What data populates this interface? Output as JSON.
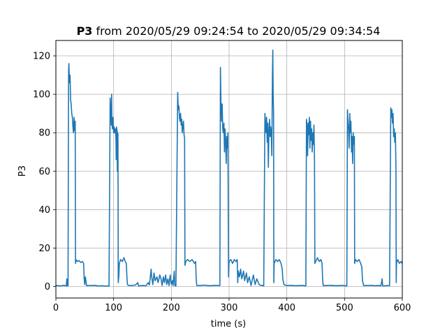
{
  "chart_data": {
    "type": "line",
    "title_bold": "P3",
    "title_rest": " from 2020/05/29 09:24:54 to 2020/05/29 09:34:54",
    "xlabel": "time (s)",
    "ylabel": "P3",
    "xlim": [
      0,
      600
    ],
    "ylim": [
      -6,
      128
    ],
    "xticks": [
      0,
      100,
      200,
      300,
      400,
      500,
      600
    ],
    "yticks": [
      0,
      20,
      40,
      60,
      80,
      100,
      120
    ],
    "grid": true,
    "line_color": "#1f77b4",
    "series": [
      {
        "points": [
          [
            0,
            0.5
          ],
          [
            8,
            0.3
          ],
          [
            14,
            0.6
          ],
          [
            18,
            0.2
          ],
          [
            19,
            4
          ],
          [
            20,
            0.5
          ],
          [
            21,
            0.3
          ],
          [
            22,
            112
          ],
          [
            22.5,
            116
          ],
          [
            23.5,
            106
          ],
          [
            24.5,
            110
          ],
          [
            25.5,
            97
          ],
          [
            26.5,
            95
          ],
          [
            27.5,
            90
          ],
          [
            28.5,
            88
          ],
          [
            29.5,
            83
          ],
          [
            30.5,
            80
          ],
          [
            31.5,
            88
          ],
          [
            32.5,
            81
          ],
          [
            33.5,
            86
          ],
          [
            34,
            12
          ],
          [
            35,
            14
          ],
          [
            37,
            13
          ],
          [
            40,
            13.5
          ],
          [
            43,
            12.5
          ],
          [
            46,
            13
          ],
          [
            48,
            12
          ],
          [
            49,
            4
          ],
          [
            50,
            1
          ],
          [
            51,
            5
          ],
          [
            52,
            3
          ],
          [
            53,
            0.5
          ],
          [
            58,
            0.5
          ],
          [
            63,
            0.5
          ],
          [
            68,
            0.6
          ],
          [
            73,
            0.3
          ],
          [
            80,
            0.4
          ],
          [
            86,
            0.2
          ],
          [
            92,
            0.3
          ],
          [
            94,
            98
          ],
          [
            95,
            90
          ],
          [
            96,
            84
          ],
          [
            96.5,
            100
          ],
          [
            97,
            85
          ],
          [
            98,
            82
          ],
          [
            99,
            88
          ],
          [
            100,
            80
          ],
          [
            101,
            83
          ],
          [
            102,
            80
          ],
          [
            103,
            82
          ],
          [
            104,
            77
          ],
          [
            104.5,
            66
          ],
          [
            105,
            83
          ],
          [
            106,
            81
          ],
          [
            106.5,
            60
          ],
          [
            107,
            80
          ],
          [
            107.5,
            79
          ],
          [
            108,
            2
          ],
          [
            109,
            5
          ],
          [
            110,
            12
          ],
          [
            112,
            14
          ],
          [
            115,
            13
          ],
          [
            118,
            15
          ],
          [
            120,
            13
          ],
          [
            122,
            12
          ],
          [
            123,
            5
          ],
          [
            124,
            1
          ],
          [
            126,
            0.5
          ],
          [
            132,
            0.5
          ],
          [
            138,
            0.8
          ],
          [
            142,
            2
          ],
          [
            143,
            0.3
          ],
          [
            150,
            0.5
          ],
          [
            156,
            0.4
          ],
          [
            160,
            2
          ],
          [
            162,
            0.8
          ],
          [
            165,
            9
          ],
          [
            166,
            5
          ],
          [
            168,
            1
          ],
          [
            170,
            7
          ],
          [
            172,
            3
          ],
          [
            175,
            5
          ],
          [
            177,
            2
          ],
          [
            180,
            6
          ],
          [
            182,
            4
          ],
          [
            184,
            0.5
          ],
          [
            186,
            5
          ],
          [
            188,
            2
          ],
          [
            190,
            6
          ],
          [
            192,
            1
          ],
          [
            194,
            4
          ],
          [
            196,
            0.5
          ],
          [
            198,
            6
          ],
          [
            200,
            1
          ],
          [
            202,
            3
          ],
          [
            203,
            0.5
          ],
          [
            205,
            8
          ],
          [
            206,
            0.5
          ],
          [
            208,
            0.3
          ],
          [
            211,
            101
          ],
          [
            212,
            92
          ],
          [
            213,
            94
          ],
          [
            214,
            88
          ],
          [
            215,
            86
          ],
          [
            216,
            90
          ],
          [
            217,
            84
          ],
          [
            218,
            87
          ],
          [
            219,
            80
          ],
          [
            220,
            84
          ],
          [
            221,
            86
          ],
          [
            222,
            79
          ],
          [
            223,
            77
          ],
          [
            223.5,
            11
          ],
          [
            225,
            13
          ],
          [
            228,
            14
          ],
          [
            232,
            13
          ],
          [
            236,
            14
          ],
          [
            240,
            12
          ],
          [
            242,
            13
          ],
          [
            243,
            4
          ],
          [
            244,
            0.5
          ],
          [
            250,
            0.5
          ],
          [
            256,
            0.7
          ],
          [
            262,
            0.5
          ],
          [
            268,
            0.4
          ],
          [
            275,
            0.6
          ],
          [
            280,
            0.5
          ],
          [
            284,
            0.5
          ],
          [
            285,
            114
          ],
          [
            286,
            95
          ],
          [
            287,
            86
          ],
          [
            288,
            95
          ],
          [
            289,
            82
          ],
          [
            290,
            80
          ],
          [
            291,
            85
          ],
          [
            292,
            70
          ],
          [
            293,
            82
          ],
          [
            294,
            76
          ],
          [
            295,
            64
          ],
          [
            296,
            78
          ],
          [
            297,
            72
          ],
          [
            298,
            80
          ],
          [
            299,
            5
          ],
          [
            300,
            13
          ],
          [
            303,
            14
          ],
          [
            306,
            12
          ],
          [
            309,
            14
          ],
          [
            312,
            13
          ],
          [
            314,
            14
          ],
          [
            315,
            2
          ],
          [
            316,
            8
          ],
          [
            318,
            5
          ],
          [
            320,
            9
          ],
          [
            322,
            4
          ],
          [
            325,
            8
          ],
          [
            327,
            3
          ],
          [
            330,
            7
          ],
          [
            332,
            2
          ],
          [
            335,
            5
          ],
          [
            338,
            0.5
          ],
          [
            342,
            6
          ],
          [
            345,
            1
          ],
          [
            348,
            4
          ],
          [
            352,
            1
          ],
          [
            355,
            0.5
          ],
          [
            358,
            0.6
          ],
          [
            360,
            0.3
          ],
          [
            362,
            90
          ],
          [
            363,
            85
          ],
          [
            364,
            80
          ],
          [
            365,
            88
          ],
          [
            366,
            75
          ],
          [
            367,
            85
          ],
          [
            368,
            62
          ],
          [
            369,
            80
          ],
          [
            370,
            87
          ],
          [
            371,
            78
          ],
          [
            372,
            83
          ],
          [
            373,
            80
          ],
          [
            374,
            68
          ],
          [
            375,
            108
          ],
          [
            375.7,
            123
          ],
          [
            376.3,
            100
          ],
          [
            377,
            90
          ],
          [
            377.5,
            2
          ],
          [
            378,
            12
          ],
          [
            381,
            14
          ],
          [
            384,
            13
          ],
          [
            387,
            14
          ],
          [
            390,
            12
          ],
          [
            392,
            9
          ],
          [
            393,
            4
          ],
          [
            395,
            1
          ],
          [
            400,
            0.5
          ],
          [
            408,
            0.6
          ],
          [
            415,
            0.4
          ],
          [
            422,
            0.5
          ],
          [
            428,
            0.5
          ],
          [
            433,
            0.3
          ],
          [
            434,
            87
          ],
          [
            435,
            84
          ],
          [
            436,
            68
          ],
          [
            437,
            85
          ],
          [
            438,
            79
          ],
          [
            439,
            88
          ],
          [
            440,
            72
          ],
          [
            441,
            86
          ],
          [
            442,
            76
          ],
          [
            443,
            82
          ],
          [
            444,
            70
          ],
          [
            445,
            80
          ],
          [
            446,
            74
          ],
          [
            447,
            84
          ],
          [
            448,
            66
          ],
          [
            448.5,
            12
          ],
          [
            450,
            13
          ],
          [
            453,
            15
          ],
          [
            456,
            13
          ],
          [
            459,
            14
          ],
          [
            461,
            12
          ],
          [
            462,
            4
          ],
          [
            463,
            0.5
          ],
          [
            470,
            0.5
          ],
          [
            478,
            0.6
          ],
          [
            485,
            0.4
          ],
          [
            492,
            0.5
          ],
          [
            497,
            0.5
          ],
          [
            504,
            0.3
          ],
          [
            505,
            92
          ],
          [
            506,
            86
          ],
          [
            507,
            82
          ],
          [
            508,
            72
          ],
          [
            509,
            90
          ],
          [
            510,
            80
          ],
          [
            511,
            86
          ],
          [
            512,
            70
          ],
          [
            513,
            78
          ],
          [
            514,
            64
          ],
          [
            515,
            80
          ],
          [
            516,
            74
          ],
          [
            517,
            78
          ],
          [
            517.5,
            12
          ],
          [
            519,
            14
          ],
          [
            522,
            13
          ],
          [
            525,
            14
          ],
          [
            528,
            12
          ],
          [
            530,
            10
          ],
          [
            531,
            3
          ],
          [
            533,
            0.5
          ],
          [
            540,
            0.5
          ],
          [
            547,
            0.6
          ],
          [
            553,
            0.4
          ],
          [
            559,
            0.5
          ],
          [
            563,
            0.4
          ],
          [
            565,
            4
          ],
          [
            566,
            0.3
          ],
          [
            578,
            0.5
          ],
          [
            580,
            93
          ],
          [
            581,
            88
          ],
          [
            582,
            92
          ],
          [
            583,
            85
          ],
          [
            584,
            90
          ],
          [
            585,
            78
          ],
          [
            586,
            82
          ],
          [
            587,
            75
          ],
          [
            588,
            80
          ],
          [
            589,
            62
          ],
          [
            589.5,
            2
          ],
          [
            590,
            12
          ],
          [
            592,
            14
          ],
          [
            595,
            12
          ],
          [
            598,
            13
          ],
          [
            600,
            12
          ]
        ]
      }
    ]
  }
}
